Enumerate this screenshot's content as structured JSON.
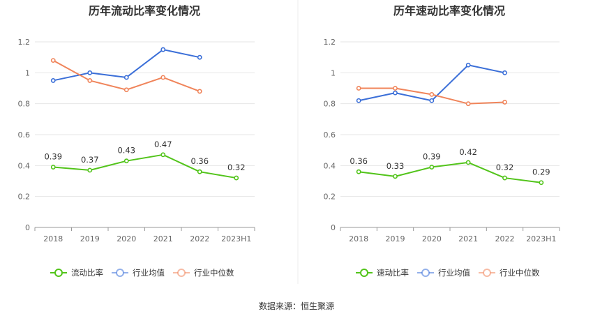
{
  "footer": {
    "source": "数据来源：恒生聚源"
  },
  "chart_data": [
    {
      "type": "line",
      "title": "历年流动比率变化情况",
      "categories": [
        "2018",
        "2019",
        "2020",
        "2021",
        "2022",
        "2023H1"
      ],
      "ylim": [
        0,
        1.2
      ],
      "yticks": [
        "0",
        "0.2",
        "0.4",
        "0.6",
        "0.8",
        "1",
        "1.2"
      ],
      "grid": true,
      "legend_position": "bottom",
      "series": [
        {
          "name": "流动比率",
          "color": "#52c41a",
          "values": [
            0.39,
            0.37,
            0.43,
            0.47,
            0.36,
            0.32
          ],
          "labels": [
            "0.39",
            "0.37",
            "0.43",
            "0.47",
            "0.36",
            "0.32"
          ]
        },
        {
          "name": "行业均值",
          "color": "#3b6fd8",
          "values": [
            0.95,
            1.0,
            0.97,
            1.15,
            1.1,
            null
          ]
        },
        {
          "name": "行业中位数",
          "color": "#f0845a",
          "values": [
            1.08,
            0.95,
            0.89,
            0.97,
            0.88,
            null
          ]
        }
      ]
    },
    {
      "type": "line",
      "title": "历年速动比率变化情况",
      "categories": [
        "2018",
        "2019",
        "2020",
        "2021",
        "2022",
        "2023H1"
      ],
      "ylim": [
        0,
        1.2
      ],
      "yticks": [
        "0",
        "0.2",
        "0.4",
        "0.6",
        "0.8",
        "1",
        "1.2"
      ],
      "grid": true,
      "legend_position": "bottom",
      "series": [
        {
          "name": "速动比率",
          "color": "#52c41a",
          "values": [
            0.36,
            0.33,
            0.39,
            0.42,
            0.32,
            0.29
          ],
          "labels": [
            "0.36",
            "0.33",
            "0.39",
            "0.42",
            "0.32",
            "0.29"
          ]
        },
        {
          "name": "行业均值",
          "color": "#3b6fd8",
          "values": [
            0.82,
            0.87,
            0.82,
            1.05,
            1.0,
            null
          ]
        },
        {
          "name": "行业中位数",
          "color": "#f0845a",
          "values": [
            0.9,
            0.9,
            0.86,
            0.8,
            0.81,
            null
          ]
        }
      ]
    }
  ]
}
